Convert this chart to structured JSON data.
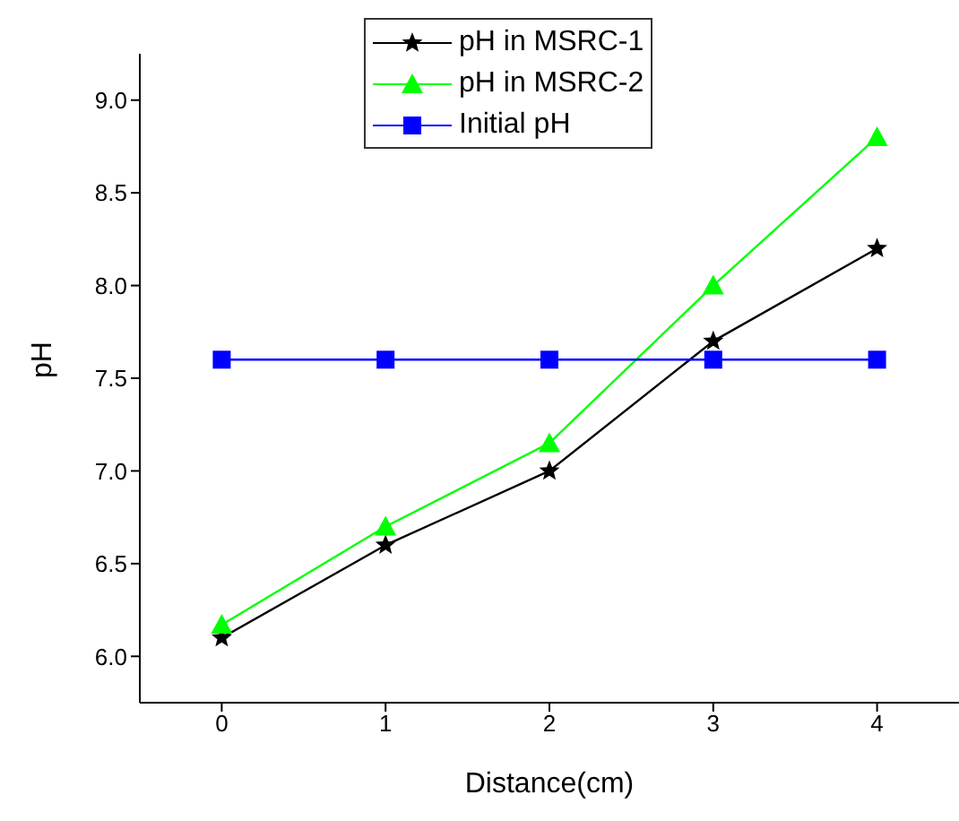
{
  "chart_data": {
    "type": "line",
    "xlabel": "Distance(cm)",
    "ylabel": "pH",
    "x": [
      0,
      1,
      2,
      3,
      4
    ],
    "series": [
      {
        "name": "pH in MSRC-1",
        "color": "#000000",
        "marker": "star",
        "values": [
          6.1,
          6.6,
          7.0,
          7.7,
          8.2
        ]
      },
      {
        "name": "pH in MSRC-2",
        "color": "#00ff00",
        "marker": "triangle",
        "values": [
          6.17,
          6.7,
          7.15,
          8.0,
          8.8
        ]
      },
      {
        "name": "Initial pH",
        "color": "#0000ff",
        "marker": "square",
        "values": [
          7.6,
          7.6,
          7.6,
          7.6,
          7.6
        ]
      }
    ],
    "xlim": [
      -0.5,
      4.5
    ],
    "xticks": [
      0,
      1,
      2,
      3,
      4
    ],
    "ylim": [
      5.75,
      9.25
    ],
    "yticks": [
      {
        "value": 6,
        "label": "6.0"
      },
      6.5,
      {
        "value": 7,
        "label": "7.0"
      },
      7.5,
      {
        "value": 8,
        "label": "8.0"
      },
      8.5,
      {
        "value": 9,
        "label": "9.0"
      }
    ],
    "grid": false,
    "legend": "top",
    "line_style": "solid"
  }
}
